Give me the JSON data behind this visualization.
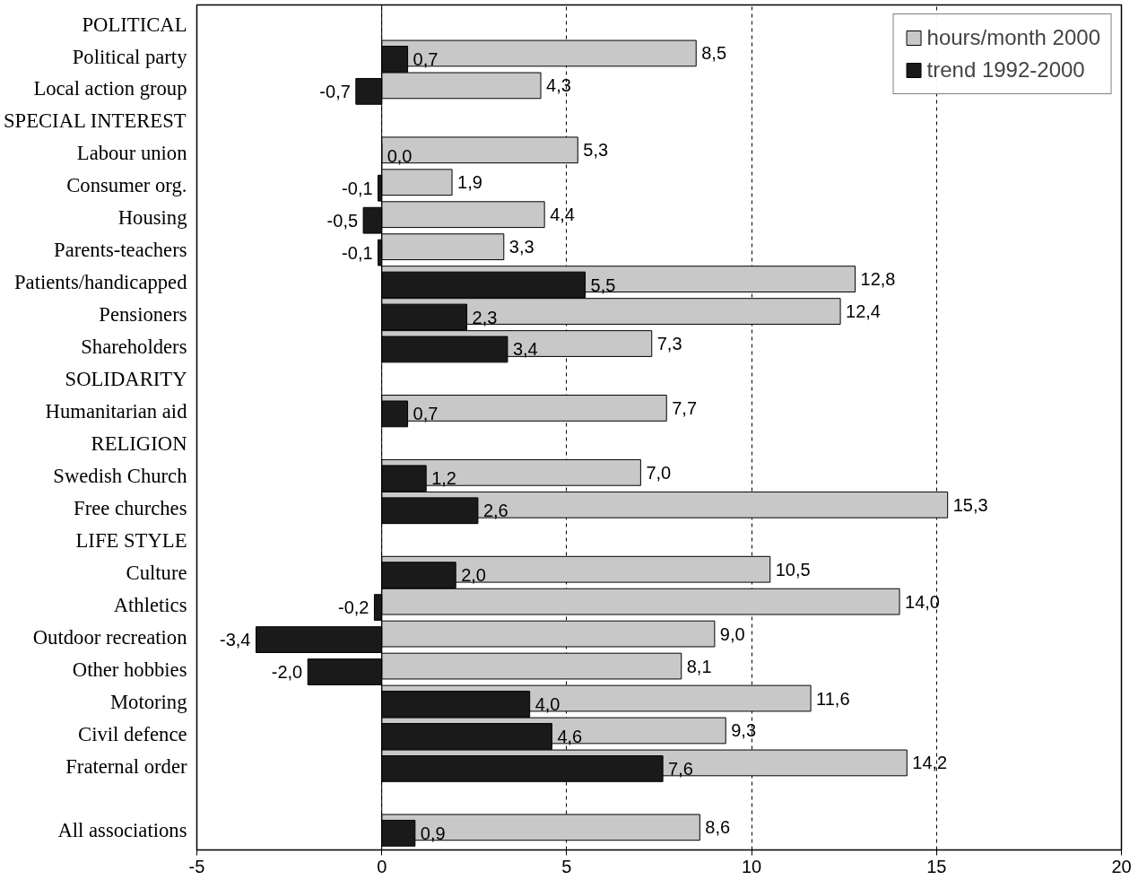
{
  "chart_data": {
    "type": "bar",
    "orientation": "horizontal",
    "categories": [
      "POLITICAL",
      "Political party",
      "Local action group",
      "SPECIAL INTEREST",
      "Labour union",
      "Consumer org.",
      "Housing",
      "Parents-teachers",
      "Patients/handicapped",
      "Pensioners",
      "Shareholders",
      "SOLIDARITY",
      "Humanitarian aid",
      "RELIGION",
      "Swedish Church",
      "Free churches",
      "LIFE STYLE",
      "Culture",
      "Athletics",
      "Outdoor recreation",
      "Other hobbies",
      "Motoring",
      "Civil defence",
      "Fraternal order",
      null,
      "All associations"
    ],
    "series": [
      {
        "name": "hours/month 2000",
        "color": "#c8c8c8",
        "values": [
          null,
          8.5,
          4.3,
          null,
          5.3,
          1.9,
          4.4,
          3.3,
          12.8,
          12.4,
          7.3,
          null,
          7.7,
          null,
          7.0,
          15.3,
          null,
          10.5,
          14.0,
          9.0,
          8.1,
          11.6,
          9.3,
          14.2,
          null,
          8.6
        ],
        "value_labels": [
          null,
          "8,5",
          "4,3",
          null,
          "5,3",
          "1,9",
          "4,4",
          "3,3",
          "12,8",
          "12,4",
          "7,3",
          null,
          "7,7",
          null,
          "7,0",
          "15,3",
          null,
          "10,5",
          "14,0",
          "9,0",
          "8,1",
          "11,6",
          "9,3",
          "14,2",
          null,
          "8,6"
        ]
      },
      {
        "name": "trend 1992-2000",
        "color": "#1a1a1a",
        "values": [
          null,
          0.7,
          -0.7,
          null,
          0.0,
          -0.1,
          -0.5,
          -0.1,
          5.5,
          2.3,
          3.4,
          null,
          0.7,
          null,
          1.2,
          2.6,
          null,
          2.0,
          -0.2,
          -3.4,
          -2.0,
          4.0,
          4.6,
          7.6,
          null,
          0.9
        ],
        "value_labels": [
          null,
          "0,7",
          "-0,7",
          null,
          "0,0",
          "-0,1",
          "-0,5",
          "-0,1",
          "5,5",
          "2,3",
          "3,4",
          null,
          "0,7",
          null,
          "1,2",
          "2,6",
          null,
          "2,0",
          "-0,2",
          "-3,4",
          "-2,0",
          "4,0",
          "4,6",
          "7,6",
          null,
          "0,9"
        ]
      }
    ],
    "xlim": [
      -5,
      20
    ],
    "xticks": [
      -5,
      0,
      5,
      10,
      15,
      20
    ],
    "grid": "x",
    "legend": "top right"
  }
}
